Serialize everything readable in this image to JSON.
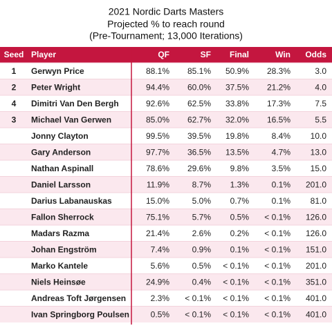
{
  "header": {
    "title": [
      "2021 Nordic Darts Masters",
      "Projected % to reach round",
      "(Pre-Tournament; 13,000 Iterations)"
    ]
  },
  "table": {
    "columns": [
      "Seed",
      "Player",
      "QF",
      "SF",
      "Final",
      "Win",
      "Odds"
    ],
    "rows": [
      [
        "1",
        "Gerwyn Price",
        "88.1%",
        "85.1%",
        "50.9%",
        "28.3%",
        "3.0"
      ],
      [
        "2",
        "Peter Wright",
        "94.4%",
        "60.0%",
        "37.5%",
        "21.2%",
        "4.0"
      ],
      [
        "4",
        "Dimitri Van Den Bergh",
        "92.6%",
        "62.5%",
        "33.8%",
        "17.3%",
        "7.5"
      ],
      [
        "3",
        "Michael Van Gerwen",
        "85.0%",
        "62.7%",
        "32.0%",
        "16.5%",
        "5.5"
      ],
      [
        "",
        "Jonny Clayton",
        "99.5%",
        "39.5%",
        "19.8%",
        "8.4%",
        "10.0"
      ],
      [
        "",
        "Gary Anderson",
        "97.7%",
        "36.5%",
        "13.5%",
        "4.7%",
        "13.0"
      ],
      [
        "",
        "Nathan Aspinall",
        "78.6%",
        "29.6%",
        "9.8%",
        "3.5%",
        "15.0"
      ],
      [
        "",
        "Daniel Larsson",
        "11.9%",
        "8.7%",
        "1.3%",
        "0.1%",
        "201.0"
      ],
      [
        "",
        "Darius Labanauskas",
        "15.0%",
        "5.0%",
        "0.7%",
        "0.1%",
        "81.0"
      ],
      [
        "",
        "Fallon Sherrock",
        "75.1%",
        "5.7%",
        "0.5%",
        "< 0.1%",
        "126.0"
      ],
      [
        "",
        "Madars Razma",
        "21.4%",
        "2.6%",
        "0.2%",
        "< 0.1%",
        "126.0"
      ],
      [
        "",
        "Johan Engström",
        "7.4%",
        "0.9%",
        "0.1%",
        "< 0.1%",
        "151.0"
      ],
      [
        "",
        "Marko Kantele",
        "5.6%",
        "0.5%",
        "< 0.1%",
        "< 0.1%",
        "201.0"
      ],
      [
        "",
        "Niels Heinsøe",
        "24.9%",
        "0.4%",
        "< 0.1%",
        "< 0.1%",
        "351.0"
      ],
      [
        "",
        "Andreas Toft Jørgensen",
        "2.3%",
        "< 0.1%",
        "< 0.1%",
        "< 0.1%",
        "401.0"
      ],
      [
        "",
        "Ivan Springborg Poulsen",
        "0.5%",
        "< 0.1%",
        "< 0.1%",
        "< 0.1%",
        "401.0"
      ]
    ]
  }
}
